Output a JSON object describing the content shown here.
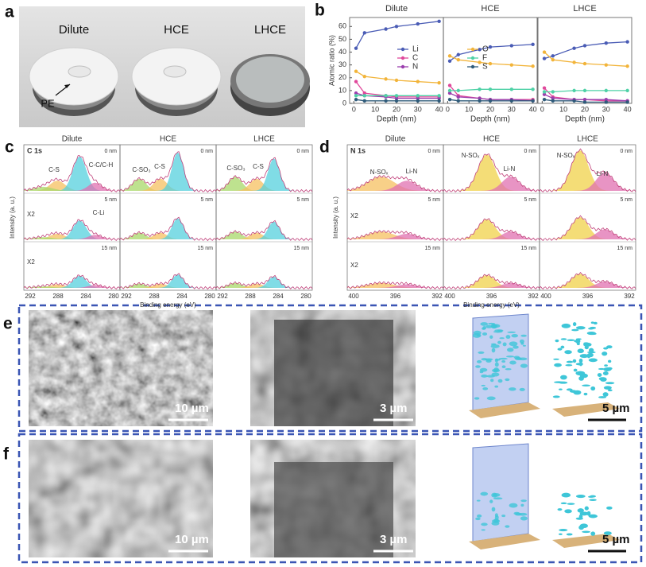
{
  "panel_labels": [
    "a",
    "b",
    "c",
    "d",
    "e",
    "f"
  ],
  "photo": {
    "labels": [
      "Dilute",
      "HCE",
      "LHCE"
    ],
    "annotation": "PE"
  },
  "chart_data": [
    {
      "type": "line",
      "title": "Dilute",
      "ylabel": "Atomic ratio (%)",
      "xlabel": "Depth (nm)",
      "x": [
        1,
        5,
        15,
        20,
        30,
        40
      ],
      "xlim": [
        -2,
        42
      ],
      "ylim": [
        0,
        67
      ],
      "xticks": [
        0,
        10,
        20,
        30,
        40
      ],
      "yticks": [
        0,
        10,
        20,
        30,
        40,
        50,
        60
      ],
      "series": [
        {
          "name": "Li",
          "color": "#4a5cb5",
          "values": [
            43,
            55,
            58,
            60,
            62,
            64
          ]
        },
        {
          "name": "C",
          "color": "#e0489b",
          "values": [
            17,
            8,
            6,
            5,
            5,
            5
          ]
        },
        {
          "name": "N",
          "color": "#9b3fae",
          "values": [
            8,
            6,
            5,
            4,
            4,
            4
          ]
        },
        {
          "name": "O",
          "color": "#f2b43a",
          "values": [
            25,
            21,
            19,
            18,
            17,
            16
          ]
        },
        {
          "name": "F",
          "color": "#4ed1a6",
          "values": [
            6,
            6,
            6,
            6,
            6,
            6
          ]
        },
        {
          "name": "S",
          "color": "#2f5b7a",
          "values": [
            3,
            2,
            2,
            2,
            2,
            2
          ]
        }
      ]
    },
    {
      "type": "line",
      "title": "HCE",
      "xlabel": "Depth (nm)",
      "x": [
        1,
        5,
        15,
        20,
        30,
        40
      ],
      "xlim": [
        -2,
        42
      ],
      "ylim": [
        0,
        67
      ],
      "xticks": [
        0,
        10,
        20,
        30,
        40
      ],
      "series": [
        {
          "name": "Li",
          "color": "#4a5cb5",
          "values": [
            33,
            38,
            42,
            44,
            45,
            46
          ]
        },
        {
          "name": "C",
          "color": "#e0489b",
          "values": [
            14,
            6,
            4,
            3,
            3,
            3
          ]
        },
        {
          "name": "N",
          "color": "#9b3fae",
          "values": [
            8,
            5,
            4,
            3,
            3,
            2
          ]
        },
        {
          "name": "O",
          "color": "#f2b43a",
          "values": [
            37,
            34,
            32,
            31,
            30,
            29
          ]
        },
        {
          "name": "F",
          "color": "#4ed1a6",
          "values": [
            10,
            10,
            11,
            11,
            11,
            11
          ]
        },
        {
          "name": "S",
          "color": "#2f5b7a",
          "values": [
            3,
            2,
            2,
            2,
            2,
            2
          ]
        }
      ]
    },
    {
      "type": "line",
      "title": "LHCE",
      "xlabel": "Depth (nm)",
      "x": [
        1,
        5,
        15,
        20,
        30,
        40
      ],
      "xlim": [
        -2,
        42
      ],
      "ylim": [
        0,
        67
      ],
      "xticks": [
        0,
        10,
        20,
        30,
        40
      ],
      "series": [
        {
          "name": "Li",
          "color": "#4a5cb5",
          "values": [
            35,
            37,
            43,
            45,
            47,
            48
          ]
        },
        {
          "name": "C",
          "color": "#e0489b",
          "values": [
            12,
            5,
            3,
            3,
            2,
            2
          ]
        },
        {
          "name": "N",
          "color": "#9b3fae",
          "values": [
            7,
            4,
            3,
            3,
            3,
            2
          ]
        },
        {
          "name": "O",
          "color": "#f2b43a",
          "values": [
            40,
            34,
            32,
            31,
            30,
            29
          ]
        },
        {
          "name": "F",
          "color": "#4ed1a6",
          "values": [
            9,
            9,
            10,
            10,
            10,
            10
          ]
        },
        {
          "name": "S",
          "color": "#2f5b7a",
          "values": [
            3,
            2,
            2,
            1,
            1,
            1
          ]
        }
      ]
    }
  ],
  "xps_c": {
    "element": "C 1s",
    "columns": [
      "Dilute",
      "HCE",
      "LHCE"
    ],
    "depths": [
      "0 nm",
      "5 nm",
      "15 nm"
    ],
    "ylabel": "Intensity (a. u.)",
    "xlabel": "Binding energy (eV)",
    "xticks": [
      "292",
      "288",
      "284",
      "280"
    ],
    "peak_labels": [
      "C-S",
      "C-C/C-H",
      "C-SO₃",
      "C-S",
      "C-SO₃",
      "C-S",
      "C-Li"
    ],
    "scale_labels": [
      "X2",
      "X2"
    ]
  },
  "xps_n": {
    "element": "N 1s",
    "columns": [
      "Dilute",
      "HCE",
      "LHCE"
    ],
    "depths": [
      "0 nm",
      "5 nm",
      "15 nm"
    ],
    "ylabel": "Intensity (a. u.)",
    "xlabel": "Binding energy (eV)",
    "xticks": [
      "400",
      "396",
      "392"
    ],
    "peak_labels": [
      "N-SOₓ",
      "Li-N",
      "N-SOₓ",
      "Li-N",
      "N-SOₓ",
      "Li-N"
    ],
    "scale_labels": [
      "X2",
      "X2"
    ]
  },
  "images_e": {
    "scale_bars": [
      "10 µm",
      "3 µm",
      "5 µm"
    ]
  },
  "images_f": {
    "scale_bars": [
      "10 µm",
      "3 µm",
      "5 µm"
    ]
  }
}
